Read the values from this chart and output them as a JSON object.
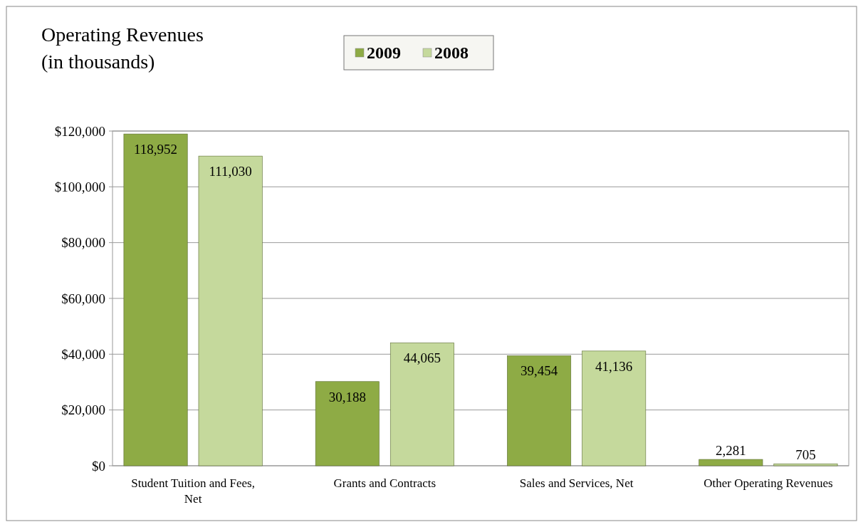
{
  "chart_data": {
    "type": "bar",
    "title": "Operating Revenues",
    "subtitle": "(in thousands)",
    "categories": [
      "Student Tuition and Fees, Net",
      "Grants and Contracts",
      "Sales and Services, Net",
      "Other Operating Revenues"
    ],
    "series": [
      {
        "name": "2009",
        "color": "#8eab45",
        "values": [
          118952,
          30188,
          39454,
          2281
        ],
        "value_labels": [
          "118,952",
          "30,188",
          "39,454",
          "2,281"
        ]
      },
      {
        "name": "2008",
        "color": "#c5d99c",
        "values": [
          111030,
          44065,
          41136,
          705
        ],
        "value_labels": [
          "111,030",
          "44,065",
          "41,136",
          "705"
        ]
      }
    ],
    "ylim": [
      0,
      120000
    ],
    "yticks": [
      {
        "value": 0,
        "label": "$0"
      },
      {
        "value": 20000,
        "label": "$20,000"
      },
      {
        "value": 40000,
        "label": "$40,000"
      },
      {
        "value": 60000,
        "label": "$60,000"
      },
      {
        "value": 80000,
        "label": "$80,000"
      },
      {
        "value": 100000,
        "label": "$100,000"
      },
      {
        "value": 120000,
        "label": "$120,000"
      }
    ],
    "grid": "y",
    "legend": "top"
  }
}
